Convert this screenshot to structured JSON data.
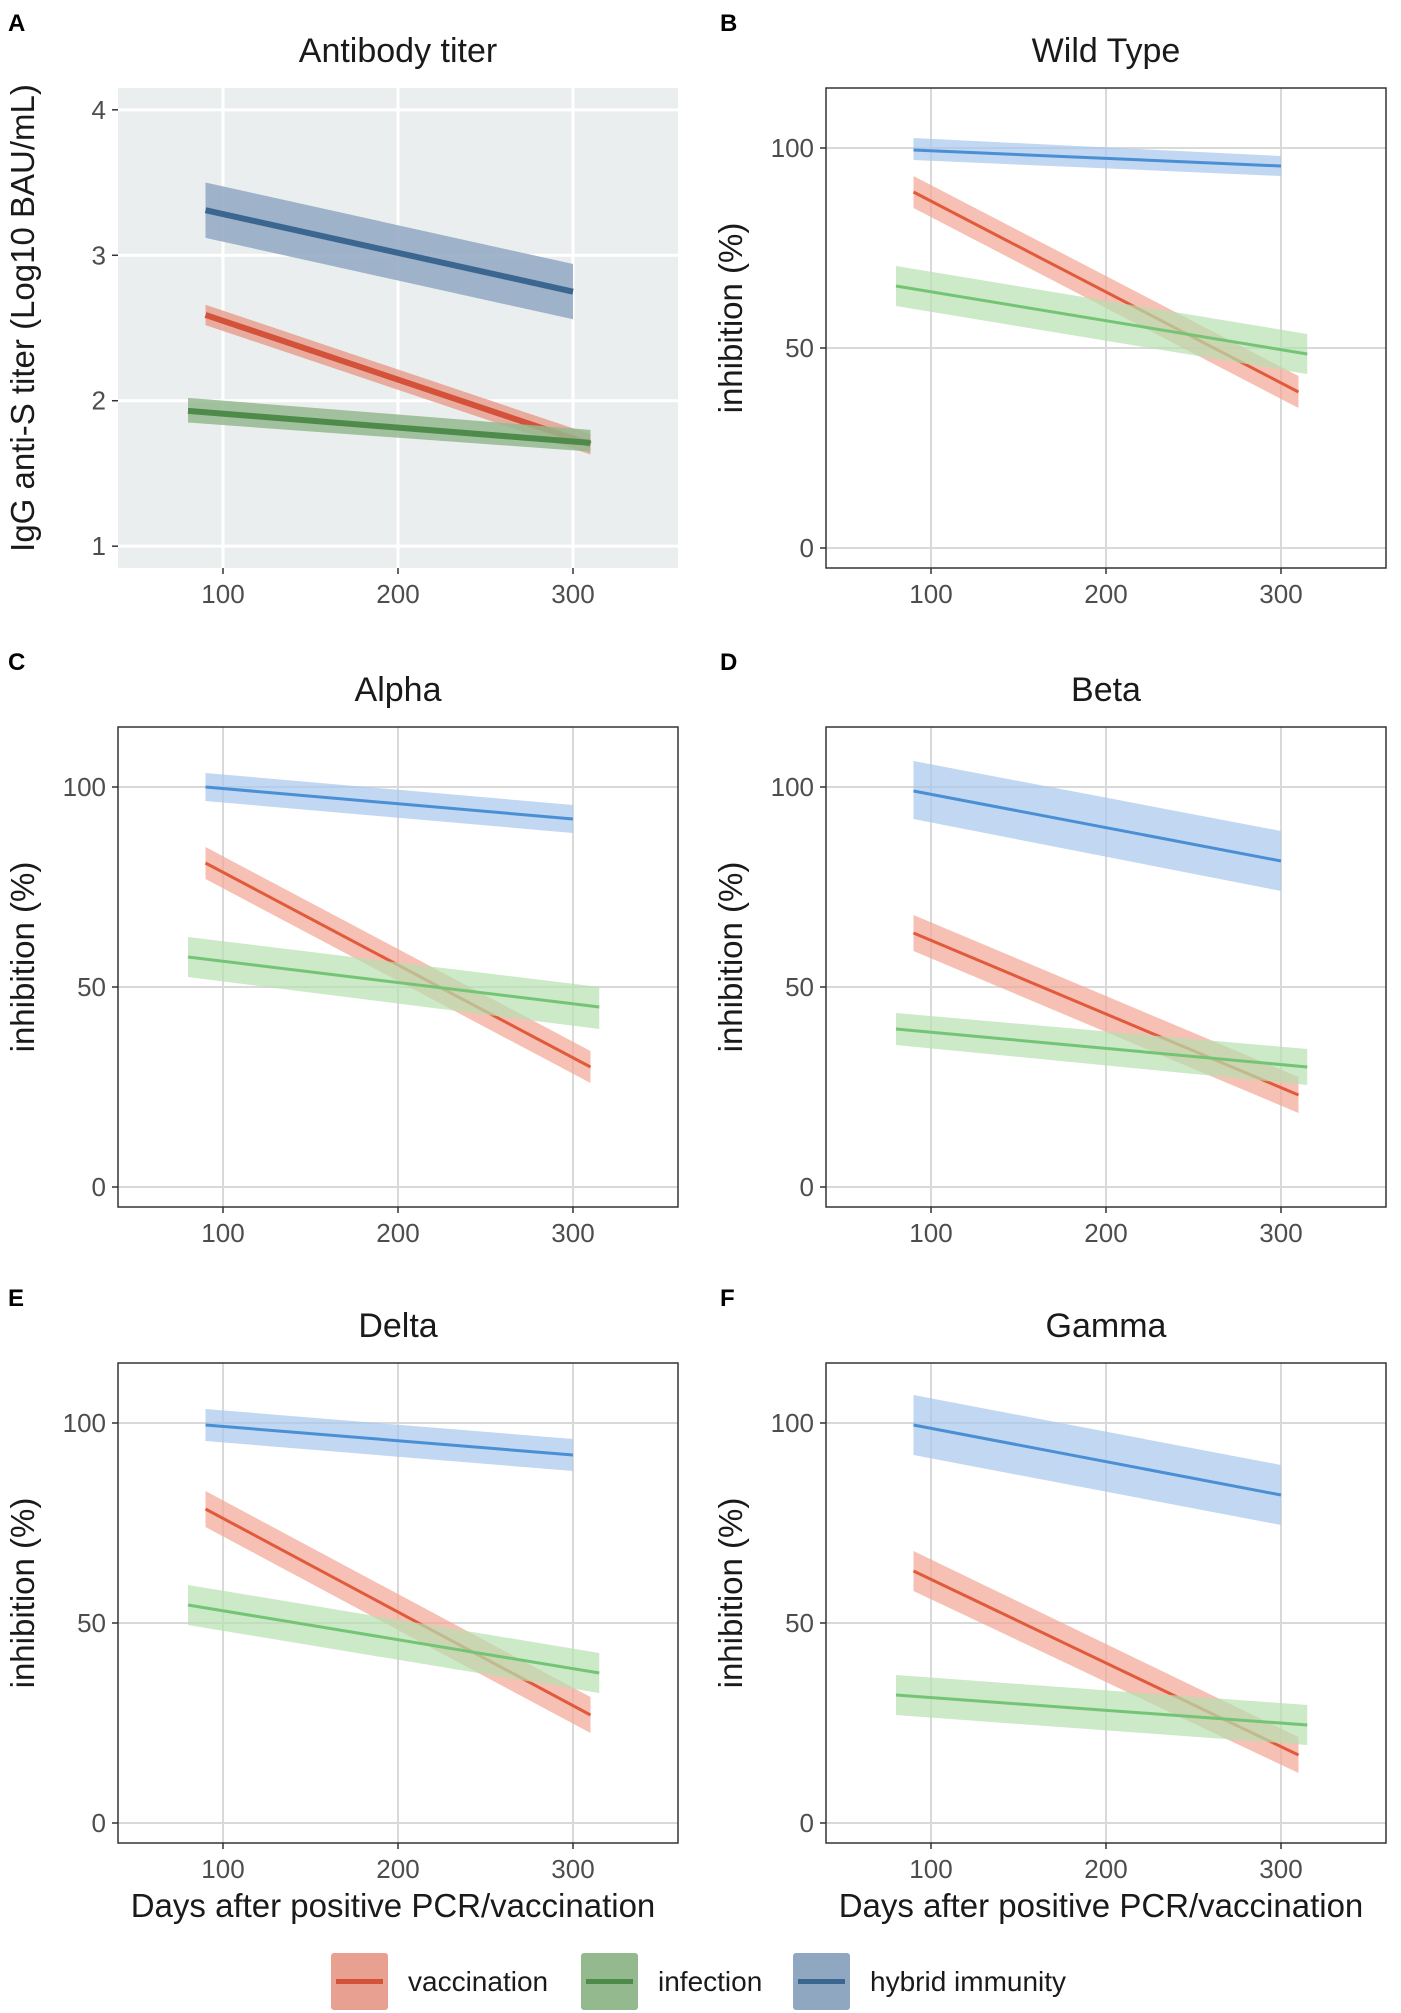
{
  "x_axis_label": "Days after positive PCR/vaccination",
  "colors": {
    "vaccination_line": "#e05a3c",
    "vaccination_band": "#f4a594",
    "infection_line": "#74c476",
    "infection_band": "#b7e0b0",
    "hybrid_line": "#4a8fd4",
    "hybrid_band": "#a6c6ec",
    "titer_vaccination_line": "#d4523a",
    "titer_vaccination_band": "#e8a090",
    "titer_infection_line": "#4e8a4a",
    "titer_infection_band": "#94b98f",
    "titer_hybrid_line": "#3a6690",
    "titer_hybrid_band": "#90a7c2",
    "titer_panel_bg": "#ebeeee"
  },
  "legend": {
    "items": [
      {
        "key": "vaccination",
        "label": "vaccination"
      },
      {
        "key": "infection",
        "label": "infection"
      },
      {
        "key": "hybrid",
        "label": "hybrid immunity"
      }
    ]
  },
  "chart_data": [
    {
      "letter": "A",
      "title": "Antibody titer",
      "type": "line",
      "style": "titer",
      "ylabel": "IgG anti-S titer (Log10 BAU/mL)",
      "xlabel": "",
      "xlim": [
        40,
        360
      ],
      "ylim": [
        0.85,
        4.15
      ],
      "xticks": [
        100,
        200,
        300
      ],
      "yticks": [
        1,
        2,
        3,
        4
      ],
      "series": [
        {
          "name": "hybrid immunity",
          "key": "hybrid",
          "x": [
            90,
            300
          ],
          "y": [
            3.31,
            2.75
          ],
          "lo": [
            3.12,
            2.56
          ],
          "hi": [
            3.5,
            2.94
          ]
        },
        {
          "name": "vaccination",
          "key": "vaccination",
          "x": [
            90,
            310
          ],
          "y": [
            2.59,
            1.7
          ],
          "lo": [
            2.52,
            1.63
          ],
          "hi": [
            2.66,
            1.77
          ]
        },
        {
          "name": "infection",
          "key": "infection",
          "x": [
            80,
            310
          ],
          "y": [
            1.93,
            1.71
          ],
          "lo": [
            1.85,
            1.65
          ],
          "hi": [
            2.02,
            1.8
          ]
        }
      ]
    },
    {
      "letter": "B",
      "title": "Wild Type",
      "type": "line",
      "style": "inhibition",
      "ylabel": "inhibition (%)",
      "xlabel": "",
      "xlim": [
        40,
        360
      ],
      "ylim": [
        -5,
        115
      ],
      "xticks": [
        100,
        200,
        300
      ],
      "yticks": [
        0,
        50,
        100
      ],
      "series": [
        {
          "name": "hybrid immunity",
          "key": "hybrid",
          "x": [
            90,
            300
          ],
          "y": [
            99.5,
            95.5
          ],
          "lo": [
            97,
            93
          ],
          "hi": [
            102.5,
            98
          ]
        },
        {
          "name": "vaccination",
          "key": "vaccination",
          "x": [
            90,
            310
          ],
          "y": [
            89,
            39
          ],
          "lo": [
            85,
            35
          ],
          "hi": [
            93,
            43
          ]
        },
        {
          "name": "infection",
          "key": "infection",
          "x": [
            80,
            315
          ],
          "y": [
            65.5,
            48.5
          ],
          "lo": [
            60.5,
            43.5
          ],
          "hi": [
            70.5,
            53.5
          ]
        }
      ]
    },
    {
      "letter": "C",
      "title": "Alpha",
      "type": "line",
      "style": "inhibition",
      "ylabel": "inhibition (%)",
      "xlabel": "",
      "xlim": [
        40,
        360
      ],
      "ylim": [
        -5,
        115
      ],
      "xticks": [
        100,
        200,
        300
      ],
      "yticks": [
        0,
        50,
        100
      ],
      "series": [
        {
          "name": "hybrid immunity",
          "key": "hybrid",
          "x": [
            90,
            300
          ],
          "y": [
            100,
            92
          ],
          "lo": [
            96.5,
            88.5
          ],
          "hi": [
            103.5,
            95.5
          ]
        },
        {
          "name": "vaccination",
          "key": "vaccination",
          "x": [
            90,
            310
          ],
          "y": [
            81,
            30
          ],
          "lo": [
            77,
            26
          ],
          "hi": [
            85,
            34
          ]
        },
        {
          "name": "infection",
          "key": "infection",
          "x": [
            80,
            315
          ],
          "y": [
            57.5,
            45
          ],
          "lo": [
            52.5,
            39.5
          ],
          "hi": [
            62.5,
            50
          ]
        }
      ]
    },
    {
      "letter": "D",
      "title": "Beta",
      "type": "line",
      "style": "inhibition",
      "ylabel": "inhibition (%)",
      "xlabel": "",
      "xlim": [
        40,
        360
      ],
      "ylim": [
        -5,
        115
      ],
      "xticks": [
        100,
        200,
        300
      ],
      "yticks": [
        0,
        50,
        100
      ],
      "series": [
        {
          "name": "hybrid immunity",
          "key": "hybrid",
          "x": [
            90,
            300
          ],
          "y": [
            99,
            81.5
          ],
          "lo": [
            92,
            74
          ],
          "hi": [
            106.5,
            89
          ]
        },
        {
          "name": "vaccination",
          "key": "vaccination",
          "x": [
            90,
            310
          ],
          "y": [
            63.5,
            23
          ],
          "lo": [
            59,
            18.5
          ],
          "hi": [
            68,
            27.5
          ]
        },
        {
          "name": "infection",
          "key": "infection",
          "x": [
            80,
            315
          ],
          "y": [
            39.5,
            30
          ],
          "lo": [
            35.5,
            25.5
          ],
          "hi": [
            43.5,
            34.5
          ]
        }
      ]
    },
    {
      "letter": "E",
      "title": "Delta",
      "type": "line",
      "style": "inhibition",
      "ylabel": "inhibition (%)",
      "xlabel": "Days after positive PCR/vaccination",
      "xlim": [
        40,
        360
      ],
      "ylim": [
        -5,
        115
      ],
      "xticks": [
        100,
        200,
        300
      ],
      "yticks": [
        0,
        50,
        100
      ],
      "series": [
        {
          "name": "hybrid immunity",
          "key": "hybrid",
          "x": [
            90,
            300
          ],
          "y": [
            99.5,
            92
          ],
          "lo": [
            95.5,
            88
          ],
          "hi": [
            103.5,
            96
          ]
        },
        {
          "name": "vaccination",
          "key": "vaccination",
          "x": [
            90,
            310
          ],
          "y": [
            78.5,
            27
          ],
          "lo": [
            74,
            22.5
          ],
          "hi": [
            83,
            31.5
          ]
        },
        {
          "name": "infection",
          "key": "infection",
          "x": [
            80,
            315
          ],
          "y": [
            54.5,
            37.5
          ],
          "lo": [
            49.5,
            32.5
          ],
          "hi": [
            59.5,
            42.5
          ]
        }
      ]
    },
    {
      "letter": "F",
      "title": "Gamma",
      "type": "line",
      "style": "inhibition",
      "ylabel": "inhibition (%)",
      "xlabel": "Days after positive PCR/vaccination",
      "xlim": [
        40,
        360
      ],
      "ylim": [
        -5,
        115
      ],
      "xticks": [
        100,
        200,
        300
      ],
      "yticks": [
        0,
        50,
        100
      ],
      "series": [
        {
          "name": "hybrid immunity",
          "key": "hybrid",
          "x": [
            90,
            300
          ],
          "y": [
            99.5,
            82
          ],
          "lo": [
            92,
            74.5
          ],
          "hi": [
            107,
            89.5
          ]
        },
        {
          "name": "vaccination",
          "key": "vaccination",
          "x": [
            90,
            310
          ],
          "y": [
            63,
            17
          ],
          "lo": [
            58,
            12.5
          ],
          "hi": [
            68,
            21.5
          ]
        },
        {
          "name": "infection",
          "key": "infection",
          "x": [
            80,
            315
          ],
          "y": [
            32,
            24.5
          ],
          "lo": [
            27,
            19.5
          ],
          "hi": [
            37,
            29.5
          ]
        }
      ]
    }
  ]
}
